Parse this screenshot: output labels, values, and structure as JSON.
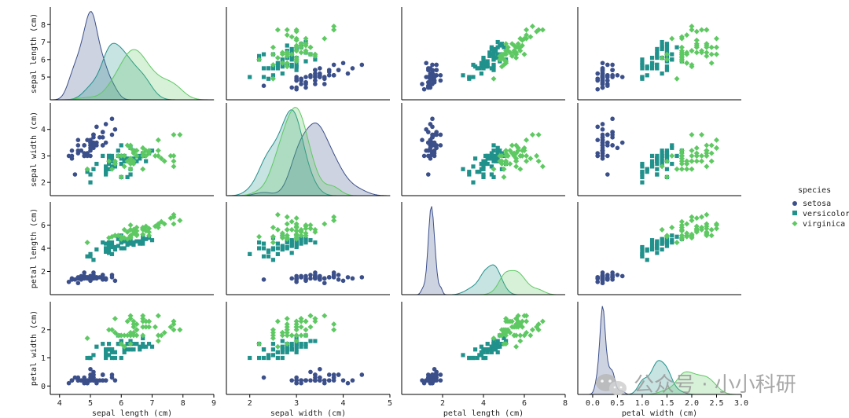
{
  "chart_data": {
    "type": "scatter",
    "kind": "pairplot",
    "variables": [
      "sepal length (cm)",
      "sepal width (cm)",
      "petal length (cm)",
      "petal width (cm)"
    ],
    "axis_labels": {
      "x": [
        "sepal length (cm)",
        "sepal width (cm)",
        "petal length (cm)",
        "petal width (cm)"
      ],
      "y": [
        "sepal length (cm)",
        "sepal width (cm)",
        "petal length (cm)",
        "petal width (cm)"
      ]
    },
    "ranges": [
      [
        3.7,
        9.0
      ],
      [
        1.5,
        5.0
      ],
      [
        0.0,
        8.0
      ],
      [
        -0.3,
        3.0
      ]
    ],
    "x_ticks": [
      [
        4,
        5,
        6,
        7,
        8,
        9
      ],
      [
        2,
        3,
        4,
        5
      ],
      [
        2,
        4,
        6,
        8
      ],
      [
        0.0,
        0.5,
        1.0,
        1.5,
        2.0,
        2.5,
        3.0
      ]
    ],
    "x_tick_labels": [
      [
        "4",
        "5",
        "6",
        "7",
        "8",
        "9"
      ],
      [
        "2",
        "3",
        "4",
        "5"
      ],
      [
        "2",
        "4",
        "6",
        "8"
      ],
      [
        "0.0",
        "0.5",
        "1.0",
        "1.5",
        "2.0",
        "2.5",
        "3.0"
      ]
    ],
    "y_ranges": [
      [
        4.2,
        8.0
      ],
      [
        1.9,
        4.5
      ],
      [
        0.7,
        7.2
      ],
      [
        -0.1,
        2.6
      ]
    ],
    "y_ticks": [
      [
        5,
        6,
        7,
        8
      ],
      [
        2,
        3,
        4
      ],
      [
        2,
        4,
        6
      ],
      [
        0,
        1,
        2
      ]
    ],
    "legend": {
      "title": "species",
      "placement": "right",
      "entries": [
        {
          "label": "setosa",
          "marker": "circle",
          "color": "#3b4f8a"
        },
        {
          "label": "versicolor",
          "marker": "square",
          "color": "#21918c"
        },
        {
          "label": "virginica",
          "marker": "diamond",
          "color": "#5ec962"
        }
      ]
    },
    "species": [
      "setosa",
      "versicolor",
      "virginica"
    ],
    "data": {
      "setosa": [
        [
          5.1,
          3.5,
          1.4,
          0.2
        ],
        [
          4.9,
          3.0,
          1.4,
          0.2
        ],
        [
          4.7,
          3.2,
          1.3,
          0.2
        ],
        [
          4.6,
          3.1,
          1.5,
          0.2
        ],
        [
          5.0,
          3.6,
          1.4,
          0.2
        ],
        [
          5.4,
          3.9,
          1.7,
          0.4
        ],
        [
          4.6,
          3.4,
          1.4,
          0.3
        ],
        [
          5.0,
          3.4,
          1.5,
          0.2
        ],
        [
          4.4,
          2.9,
          1.4,
          0.2
        ],
        [
          4.9,
          3.1,
          1.5,
          0.1
        ],
        [
          5.4,
          3.7,
          1.5,
          0.2
        ],
        [
          4.8,
          3.4,
          1.6,
          0.2
        ],
        [
          4.8,
          3.0,
          1.4,
          0.1
        ],
        [
          4.3,
          3.0,
          1.1,
          0.1
        ],
        [
          5.8,
          4.0,
          1.2,
          0.2
        ],
        [
          5.7,
          4.4,
          1.5,
          0.4
        ],
        [
          5.4,
          3.9,
          1.3,
          0.4
        ],
        [
          5.1,
          3.5,
          1.4,
          0.3
        ],
        [
          5.7,
          3.8,
          1.7,
          0.3
        ],
        [
          5.1,
          3.8,
          1.5,
          0.3
        ],
        [
          5.4,
          3.4,
          1.7,
          0.2
        ],
        [
          5.1,
          3.7,
          1.5,
          0.4
        ],
        [
          4.6,
          3.6,
          1.0,
          0.2
        ],
        [
          5.1,
          3.3,
          1.7,
          0.5
        ],
        [
          4.8,
          3.4,
          1.9,
          0.2
        ],
        [
          5.0,
          3.0,
          1.6,
          0.2
        ],
        [
          5.0,
          3.4,
          1.6,
          0.4
        ],
        [
          5.2,
          3.5,
          1.5,
          0.2
        ],
        [
          5.2,
          3.4,
          1.4,
          0.2
        ],
        [
          4.7,
          3.2,
          1.6,
          0.2
        ],
        [
          4.8,
          3.1,
          1.6,
          0.2
        ],
        [
          5.4,
          3.4,
          1.5,
          0.4
        ],
        [
          5.2,
          4.1,
          1.5,
          0.1
        ],
        [
          5.5,
          4.2,
          1.4,
          0.2
        ],
        [
          4.9,
          3.1,
          1.5,
          0.2
        ],
        [
          5.0,
          3.2,
          1.2,
          0.2
        ],
        [
          5.5,
          3.5,
          1.3,
          0.2
        ],
        [
          4.9,
          3.6,
          1.4,
          0.1
        ],
        [
          4.4,
          3.0,
          1.3,
          0.2
        ],
        [
          5.1,
          3.4,
          1.5,
          0.2
        ],
        [
          5.0,
          3.5,
          1.3,
          0.3
        ],
        [
          4.5,
          2.3,
          1.3,
          0.3
        ],
        [
          4.4,
          3.2,
          1.3,
          0.2
        ],
        [
          5.0,
          3.5,
          1.6,
          0.6
        ],
        [
          5.1,
          3.8,
          1.9,
          0.4
        ],
        [
          4.8,
          3.0,
          1.4,
          0.3
        ],
        [
          5.1,
          3.8,
          1.6,
          0.2
        ],
        [
          4.6,
          3.2,
          1.4,
          0.2
        ],
        [
          5.3,
          3.7,
          1.5,
          0.2
        ],
        [
          5.0,
          3.3,
          1.4,
          0.2
        ]
      ],
      "versicolor": [
        [
          7.0,
          3.2,
          4.7,
          1.4
        ],
        [
          6.4,
          3.2,
          4.5,
          1.5
        ],
        [
          6.9,
          3.1,
          4.9,
          1.5
        ],
        [
          5.5,
          2.3,
          4.0,
          1.3
        ],
        [
          6.5,
          2.8,
          4.6,
          1.5
        ],
        [
          5.7,
          2.8,
          4.5,
          1.3
        ],
        [
          6.3,
          3.3,
          4.7,
          1.6
        ],
        [
          4.9,
          2.4,
          3.3,
          1.0
        ],
        [
          6.6,
          2.9,
          4.6,
          1.3
        ],
        [
          5.2,
          2.7,
          3.9,
          1.4
        ],
        [
          5.0,
          2.0,
          3.5,
          1.0
        ],
        [
          5.9,
          3.0,
          4.2,
          1.5
        ],
        [
          6.0,
          2.2,
          4.0,
          1.0
        ],
        [
          6.1,
          2.9,
          4.7,
          1.4
        ],
        [
          5.6,
          2.9,
          3.6,
          1.3
        ],
        [
          6.7,
          3.1,
          4.4,
          1.4
        ],
        [
          5.6,
          3.0,
          4.5,
          1.5
        ],
        [
          5.8,
          2.7,
          4.1,
          1.0
        ],
        [
          6.2,
          2.2,
          4.5,
          1.5
        ],
        [
          5.6,
          2.5,
          3.9,
          1.1
        ],
        [
          5.9,
          3.2,
          4.8,
          1.8
        ],
        [
          6.1,
          2.8,
          4.0,
          1.3
        ],
        [
          6.3,
          2.5,
          4.9,
          1.5
        ],
        [
          6.1,
          2.8,
          4.7,
          1.2
        ],
        [
          6.4,
          2.9,
          4.3,
          1.3
        ],
        [
          6.6,
          3.0,
          4.4,
          1.4
        ],
        [
          6.8,
          2.8,
          4.8,
          1.4
        ],
        [
          6.7,
          3.0,
          5.0,
          1.7
        ],
        [
          6.0,
          2.9,
          4.5,
          1.5
        ],
        [
          5.7,
          2.6,
          3.5,
          1.0
        ],
        [
          5.5,
          2.4,
          3.8,
          1.1
        ],
        [
          5.5,
          2.4,
          3.7,
          1.0
        ],
        [
          5.8,
          2.7,
          3.9,
          1.2
        ],
        [
          6.0,
          2.7,
          5.1,
          1.6
        ],
        [
          5.4,
          3.0,
          4.5,
          1.5
        ],
        [
          6.0,
          3.4,
          4.5,
          1.6
        ],
        [
          6.7,
          3.1,
          4.7,
          1.5
        ],
        [
          6.3,
          2.3,
          4.4,
          1.3
        ],
        [
          5.6,
          3.0,
          4.1,
          1.3
        ],
        [
          5.5,
          2.5,
          4.0,
          1.3
        ],
        [
          5.5,
          2.6,
          4.4,
          1.2
        ],
        [
          6.1,
          3.0,
          4.6,
          1.4
        ],
        [
          5.8,
          2.6,
          4.0,
          1.2
        ],
        [
          5.0,
          2.3,
          3.3,
          1.0
        ],
        [
          5.6,
          2.7,
          4.2,
          1.3
        ],
        [
          5.7,
          3.0,
          4.2,
          1.2
        ],
        [
          5.7,
          2.9,
          4.2,
          1.3
        ],
        [
          6.2,
          2.9,
          4.3,
          1.3
        ],
        [
          5.1,
          2.5,
          3.0,
          1.1
        ],
        [
          5.7,
          2.8,
          4.1,
          1.3
        ]
      ],
      "virginica": [
        [
          6.3,
          3.3,
          6.0,
          2.5
        ],
        [
          5.8,
          2.7,
          5.1,
          1.9
        ],
        [
          7.1,
          3.0,
          5.9,
          2.1
        ],
        [
          6.3,
          2.9,
          5.6,
          1.8
        ],
        [
          6.5,
          3.0,
          5.8,
          2.2
        ],
        [
          7.6,
          3.0,
          6.6,
          2.1
        ],
        [
          4.9,
          2.5,
          4.5,
          1.7
        ],
        [
          7.3,
          2.9,
          6.3,
          1.8
        ],
        [
          6.7,
          2.5,
          5.8,
          1.8
        ],
        [
          7.2,
          3.6,
          6.1,
          2.5
        ],
        [
          6.5,
          3.2,
          5.1,
          2.0
        ],
        [
          6.4,
          2.7,
          5.3,
          1.9
        ],
        [
          6.8,
          3.0,
          5.5,
          2.1
        ],
        [
          5.7,
          2.5,
          5.0,
          2.0
        ],
        [
          5.8,
          2.8,
          5.1,
          2.4
        ],
        [
          6.4,
          3.2,
          5.3,
          2.3
        ],
        [
          6.5,
          3.0,
          5.5,
          1.8
        ],
        [
          7.7,
          3.8,
          6.7,
          2.2
        ],
        [
          7.7,
          2.6,
          6.9,
          2.3
        ],
        [
          6.0,
          2.2,
          5.0,
          1.5
        ],
        [
          6.9,
          3.2,
          5.7,
          2.3
        ],
        [
          5.6,
          2.8,
          4.9,
          2.0
        ],
        [
          7.7,
          2.8,
          6.7,
          2.0
        ],
        [
          6.3,
          2.7,
          4.9,
          1.8
        ],
        [
          6.7,
          3.3,
          5.7,
          2.1
        ],
        [
          7.2,
          3.2,
          6.0,
          1.8
        ],
        [
          6.2,
          2.8,
          4.8,
          1.8
        ],
        [
          6.1,
          3.0,
          4.9,
          1.8
        ],
        [
          6.4,
          2.8,
          5.6,
          2.1
        ],
        [
          7.2,
          3.0,
          5.8,
          1.6
        ],
        [
          7.4,
          2.8,
          6.1,
          1.9
        ],
        [
          7.9,
          3.8,
          6.4,
          2.0
        ],
        [
          6.4,
          2.8,
          5.6,
          2.2
        ],
        [
          6.3,
          2.8,
          5.1,
          1.5
        ],
        [
          6.1,
          2.6,
          5.6,
          1.4
        ],
        [
          7.7,
          3.0,
          6.1,
          2.3
        ],
        [
          6.3,
          3.4,
          5.6,
          2.4
        ],
        [
          6.4,
          3.1,
          5.5,
          1.8
        ],
        [
          6.0,
          3.0,
          4.8,
          1.8
        ],
        [
          6.9,
          3.1,
          5.4,
          2.1
        ],
        [
          6.7,
          3.1,
          5.6,
          2.4
        ],
        [
          6.9,
          3.1,
          5.1,
          2.3
        ],
        [
          5.8,
          2.7,
          5.1,
          1.9
        ],
        [
          6.8,
          3.2,
          5.9,
          2.3
        ],
        [
          6.7,
          3.3,
          5.7,
          2.5
        ],
        [
          6.7,
          3.0,
          5.2,
          2.3
        ],
        [
          6.3,
          2.5,
          5.0,
          1.9
        ],
        [
          6.5,
          3.0,
          5.2,
          2.0
        ],
        [
          6.2,
          3.4,
          5.4,
          2.3
        ],
        [
          5.9,
          3.0,
          5.1,
          1.8
        ]
      ]
    },
    "diagonal": "kde"
  },
  "watermark": {
    "text": "公众号 · 小小科研",
    "icon": "wechat-icon"
  }
}
